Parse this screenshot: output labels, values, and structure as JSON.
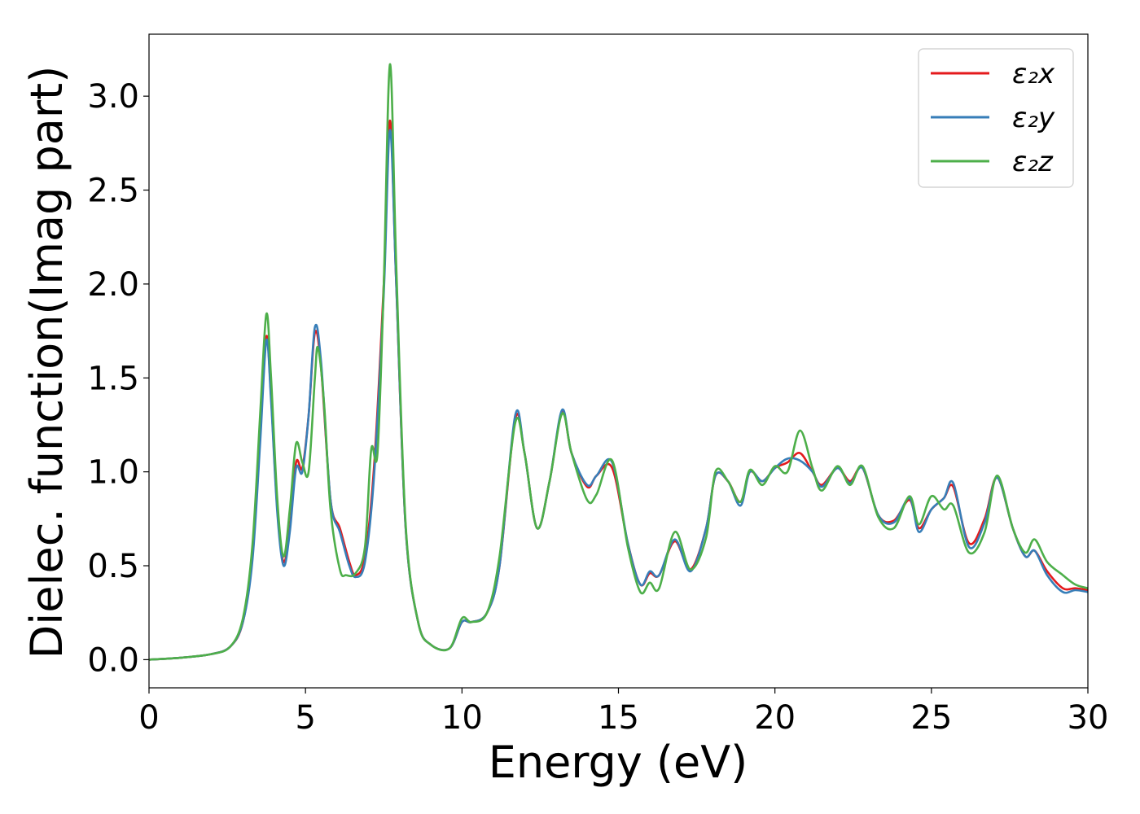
{
  "chart_data": {
    "type": "line",
    "title": "",
    "xlabel": "Energy (eV)",
    "ylabel": "Dielec. function(Imag part)",
    "xlim": [
      0,
      30
    ],
    "ylim": [
      -0.15,
      3.33
    ],
    "xticks": [
      0,
      5,
      10,
      15,
      20,
      25,
      30
    ],
    "xtick_labels": [
      "0",
      "5",
      "10",
      "15",
      "20",
      "25",
      "30"
    ],
    "yticks": [
      0.0,
      0.5,
      1.0,
      1.5,
      2.0,
      2.5,
      3.0
    ],
    "ytick_labels": [
      "0.0",
      "0.5",
      "1.0",
      "1.5",
      "2.0",
      "2.5",
      "3.0"
    ],
    "grid": false,
    "legend_position": "top-right",
    "series": [
      {
        "name": "ε₂x",
        "color": "#e41a1c",
        "points": [
          [
            0,
            0
          ],
          [
            1,
            0.01
          ],
          [
            2,
            0.03
          ],
          [
            2.6,
            0.07
          ],
          [
            3.0,
            0.2
          ],
          [
            3.3,
            0.55
          ],
          [
            3.55,
            1.2
          ],
          [
            3.75,
            1.72
          ],
          [
            3.9,
            1.4
          ],
          [
            4.1,
            0.8
          ],
          [
            4.3,
            0.52
          ],
          [
            4.5,
            0.7
          ],
          [
            4.7,
            1.05
          ],
          [
            4.9,
            1.02
          ],
          [
            5.1,
            1.3
          ],
          [
            5.3,
            1.74
          ],
          [
            5.5,
            1.55
          ],
          [
            5.8,
            0.85
          ],
          [
            6.1,
            0.7
          ],
          [
            6.4,
            0.52
          ],
          [
            6.6,
            0.45
          ],
          [
            6.9,
            0.55
          ],
          [
            7.2,
            1.05
          ],
          [
            7.5,
            2.0
          ],
          [
            7.7,
            2.87
          ],
          [
            7.9,
            2.0
          ],
          [
            8.2,
            0.7
          ],
          [
            8.6,
            0.2
          ],
          [
            9.0,
            0.08
          ],
          [
            9.6,
            0.06
          ],
          [
            10.0,
            0.2
          ],
          [
            10.3,
            0.2
          ],
          [
            10.8,
            0.25
          ],
          [
            11.2,
            0.5
          ],
          [
            11.7,
            1.28
          ],
          [
            12.0,
            1.1
          ],
          [
            12.4,
            0.7
          ],
          [
            12.8,
            0.95
          ],
          [
            13.2,
            1.32
          ],
          [
            13.5,
            1.1
          ],
          [
            14.0,
            0.92
          ],
          [
            14.3,
            0.98
          ],
          [
            14.8,
            1.02
          ],
          [
            15.3,
            0.62
          ],
          [
            15.7,
            0.4
          ],
          [
            16.0,
            0.46
          ],
          [
            16.3,
            0.45
          ],
          [
            16.8,
            0.63
          ],
          [
            17.3,
            0.48
          ],
          [
            17.8,
            0.7
          ],
          [
            18.1,
            0.98
          ],
          [
            18.5,
            0.95
          ],
          [
            18.9,
            0.84
          ],
          [
            19.2,
            1.0
          ],
          [
            19.6,
            0.95
          ],
          [
            20.0,
            1.02
          ],
          [
            20.4,
            1.05
          ],
          [
            20.8,
            1.1
          ],
          [
            21.2,
            1.0
          ],
          [
            21.5,
            0.93
          ],
          [
            22.0,
            1.02
          ],
          [
            22.4,
            0.95
          ],
          [
            22.8,
            1.02
          ],
          [
            23.3,
            0.77
          ],
          [
            23.8,
            0.74
          ],
          [
            24.3,
            0.85
          ],
          [
            24.6,
            0.7
          ],
          [
            25.0,
            0.8
          ],
          [
            25.4,
            0.86
          ],
          [
            25.7,
            0.92
          ],
          [
            26.2,
            0.62
          ],
          [
            26.7,
            0.75
          ],
          [
            27.1,
            0.97
          ],
          [
            27.6,
            0.7
          ],
          [
            28.0,
            0.55
          ],
          [
            28.3,
            0.58
          ],
          [
            28.7,
            0.47
          ],
          [
            29.2,
            0.38
          ],
          [
            29.6,
            0.38
          ],
          [
            30,
            0.37
          ]
        ]
      },
      {
        "name": "ε₂y",
        "color": "#377eb8",
        "points": [
          [
            0,
            0
          ],
          [
            1,
            0.01
          ],
          [
            2,
            0.03
          ],
          [
            2.6,
            0.07
          ],
          [
            3.0,
            0.2
          ],
          [
            3.3,
            0.52
          ],
          [
            3.55,
            1.15
          ],
          [
            3.75,
            1.7
          ],
          [
            3.9,
            1.38
          ],
          [
            4.1,
            0.78
          ],
          [
            4.3,
            0.5
          ],
          [
            4.5,
            0.68
          ],
          [
            4.7,
            1.02
          ],
          [
            4.9,
            1.0
          ],
          [
            5.1,
            1.3
          ],
          [
            5.3,
            1.77
          ],
          [
            5.5,
            1.58
          ],
          [
            5.8,
            0.85
          ],
          [
            6.1,
            0.68
          ],
          [
            6.4,
            0.5
          ],
          [
            6.6,
            0.44
          ],
          [
            6.9,
            0.52
          ],
          [
            7.2,
            1.0
          ],
          [
            7.5,
            1.95
          ],
          [
            7.7,
            2.82
          ],
          [
            7.9,
            2.0
          ],
          [
            8.2,
            0.7
          ],
          [
            8.6,
            0.2
          ],
          [
            9.0,
            0.08
          ],
          [
            9.6,
            0.06
          ],
          [
            10.0,
            0.2
          ],
          [
            10.3,
            0.2
          ],
          [
            10.8,
            0.25
          ],
          [
            11.2,
            0.5
          ],
          [
            11.7,
            1.3
          ],
          [
            12.0,
            1.1
          ],
          [
            12.4,
            0.7
          ],
          [
            12.8,
            0.95
          ],
          [
            13.2,
            1.33
          ],
          [
            13.5,
            1.1
          ],
          [
            14.0,
            0.93
          ],
          [
            14.3,
            0.98
          ],
          [
            14.8,
            1.05
          ],
          [
            15.3,
            0.62
          ],
          [
            15.7,
            0.4
          ],
          [
            16.0,
            0.47
          ],
          [
            16.3,
            0.45
          ],
          [
            16.8,
            0.64
          ],
          [
            17.3,
            0.47
          ],
          [
            17.8,
            0.7
          ],
          [
            18.1,
            0.98
          ],
          [
            18.5,
            0.95
          ],
          [
            18.9,
            0.82
          ],
          [
            19.2,
            1.0
          ],
          [
            19.6,
            0.95
          ],
          [
            20.0,
            1.02
          ],
          [
            20.4,
            1.07
          ],
          [
            20.8,
            1.06
          ],
          [
            21.2,
            1.0
          ],
          [
            21.5,
            0.92
          ],
          [
            22.0,
            1.02
          ],
          [
            22.4,
            0.94
          ],
          [
            22.8,
            1.02
          ],
          [
            23.3,
            0.77
          ],
          [
            23.8,
            0.73
          ],
          [
            24.3,
            0.86
          ],
          [
            24.6,
            0.68
          ],
          [
            25.0,
            0.8
          ],
          [
            25.4,
            0.86
          ],
          [
            25.7,
            0.94
          ],
          [
            26.2,
            0.6
          ],
          [
            26.7,
            0.73
          ],
          [
            27.1,
            0.97
          ],
          [
            27.6,
            0.7
          ],
          [
            28.0,
            0.55
          ],
          [
            28.3,
            0.58
          ],
          [
            28.7,
            0.45
          ],
          [
            29.2,
            0.36
          ],
          [
            29.6,
            0.37
          ],
          [
            30,
            0.36
          ]
        ]
      },
      {
        "name": "ε₂z",
        "color": "#4daf4a",
        "points": [
          [
            0,
            0
          ],
          [
            1,
            0.01
          ],
          [
            2,
            0.03
          ],
          [
            2.6,
            0.07
          ],
          [
            3.0,
            0.22
          ],
          [
            3.3,
            0.6
          ],
          [
            3.55,
            1.3
          ],
          [
            3.75,
            1.84
          ],
          [
            3.9,
            1.5
          ],
          [
            4.1,
            0.85
          ],
          [
            4.3,
            0.55
          ],
          [
            4.5,
            0.8
          ],
          [
            4.7,
            1.15
          ],
          [
            4.9,
            1.05
          ],
          [
            5.1,
            1.0
          ],
          [
            5.3,
            1.5
          ],
          [
            5.4,
            1.66
          ],
          [
            5.6,
            1.35
          ],
          [
            5.8,
            0.8
          ],
          [
            6.1,
            0.48
          ],
          [
            6.3,
            0.45
          ],
          [
            6.6,
            0.46
          ],
          [
            6.9,
            0.6
          ],
          [
            7.1,
            1.12
          ],
          [
            7.3,
            1.1
          ],
          [
            7.5,
            2.0
          ],
          [
            7.7,
            3.17
          ],
          [
            7.9,
            2.1
          ],
          [
            8.2,
            0.72
          ],
          [
            8.6,
            0.2
          ],
          [
            9.0,
            0.08
          ],
          [
            9.6,
            0.06
          ],
          [
            10.0,
            0.22
          ],
          [
            10.3,
            0.2
          ],
          [
            10.8,
            0.25
          ],
          [
            11.2,
            0.55
          ],
          [
            11.7,
            1.26
          ],
          [
            12.0,
            1.1
          ],
          [
            12.4,
            0.7
          ],
          [
            12.8,
            0.95
          ],
          [
            13.2,
            1.31
          ],
          [
            13.5,
            1.1
          ],
          [
            14.0,
            0.85
          ],
          [
            14.3,
            0.88
          ],
          [
            14.8,
            1.06
          ],
          [
            15.3,
            0.6
          ],
          [
            15.7,
            0.36
          ],
          [
            16.0,
            0.41
          ],
          [
            16.3,
            0.38
          ],
          [
            16.8,
            0.68
          ],
          [
            17.3,
            0.48
          ],
          [
            17.8,
            0.65
          ],
          [
            18.1,
            1.0
          ],
          [
            18.5,
            0.95
          ],
          [
            18.9,
            0.84
          ],
          [
            19.2,
            1.01
          ],
          [
            19.6,
            0.93
          ],
          [
            20.0,
            1.03
          ],
          [
            20.4,
            1.0
          ],
          [
            20.8,
            1.22
          ],
          [
            21.2,
            1.02
          ],
          [
            21.5,
            0.9
          ],
          [
            22.0,
            1.03
          ],
          [
            22.4,
            0.93
          ],
          [
            22.8,
            1.03
          ],
          [
            23.3,
            0.76
          ],
          [
            23.8,
            0.7
          ],
          [
            24.3,
            0.87
          ],
          [
            24.6,
            0.72
          ],
          [
            25.0,
            0.87
          ],
          [
            25.4,
            0.8
          ],
          [
            25.7,
            0.82
          ],
          [
            26.2,
            0.57
          ],
          [
            26.7,
            0.68
          ],
          [
            27.1,
            0.98
          ],
          [
            27.6,
            0.7
          ],
          [
            28.0,
            0.57
          ],
          [
            28.3,
            0.64
          ],
          [
            28.7,
            0.52
          ],
          [
            29.2,
            0.45
          ],
          [
            29.6,
            0.4
          ],
          [
            30,
            0.38
          ]
        ]
      }
    ]
  }
}
